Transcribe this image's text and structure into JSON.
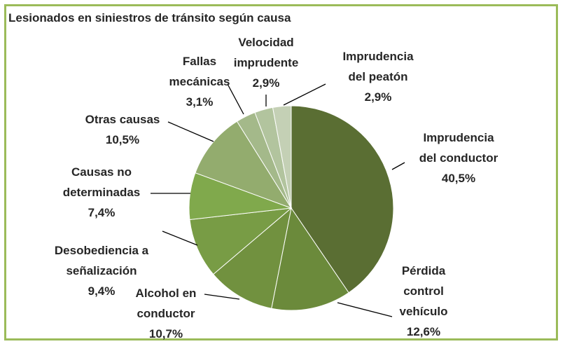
{
  "chart_data": {
    "type": "pie",
    "title": "Lesionados en siniestros de tránsito según causa",
    "categories": [
      "Imprudencia del conductor",
      "Pérdida control vehículo",
      "Alcohol en conductor",
      "Desobediencia a señalización",
      "Causas no determinadas",
      "Otras causas",
      "Fallas mecánicas",
      "Velocidad imprudente",
      "Imprudencia del peatón"
    ],
    "values": [
      40.5,
      12.6,
      10.7,
      9.4,
      7.4,
      10.5,
      3.1,
      2.9,
      2.9
    ],
    "value_labels": [
      "40,5%",
      "12,6%",
      "10,7%",
      "9,4%",
      "7,4%",
      "10,5%",
      "3,1%",
      "2,9%",
      "2,9%"
    ],
    "colors": [
      "#5a6e33",
      "#6b8a3b",
      "#71913f",
      "#789c45",
      "#80a94c",
      "#93ac6e",
      "#a4b98a",
      "#b2c49e",
      "#c4d0b5"
    ]
  }
}
